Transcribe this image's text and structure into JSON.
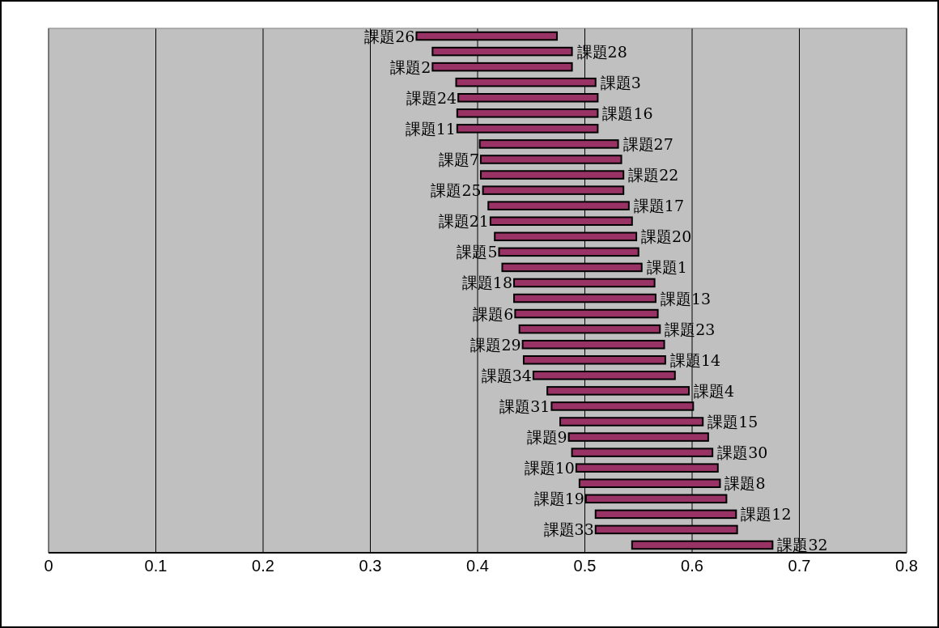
{
  "chart_data": {
    "type": "bar",
    "orientation": "horizontal",
    "categories": [
      "課題26",
      "課題28",
      "課題2",
      "課題3",
      "課題24",
      "課題16",
      "課題11",
      "課題27",
      "課題7",
      "課題22",
      "課題25",
      "課題17",
      "課題21",
      "課題20",
      "課題5",
      "課題1",
      "課題18",
      "課題13",
      "課題6",
      "課題23",
      "課題29",
      "課題14",
      "課題34",
      "課題4",
      "課題31",
      "課題15",
      "課題9",
      "課題30",
      "課題10",
      "課題8",
      "課題19",
      "課題12",
      "課題33",
      "課題32"
    ],
    "base": [
      0.343,
      0.358,
      0.358,
      0.38,
      0.382,
      0.381,
      0.381,
      0.402,
      0.403,
      0.403,
      0.405,
      0.41,
      0.412,
      0.416,
      0.42,
      0.423,
      0.434,
      0.434,
      0.435,
      0.439,
      0.442,
      0.443,
      0.452,
      0.465,
      0.469,
      0.477,
      0.485,
      0.488,
      0.492,
      0.495,
      0.501,
      0.51,
      0.51,
      0.544
    ],
    "values": [
      0.131,
      0.13,
      0.13,
      0.13,
      0.13,
      0.131,
      0.131,
      0.129,
      0.131,
      0.133,
      0.131,
      0.131,
      0.132,
      0.132,
      0.13,
      0.13,
      0.131,
      0.132,
      0.133,
      0.131,
      0.132,
      0.132,
      0.132,
      0.132,
      0.132,
      0.133,
      0.13,
      0.131,
      0.132,
      0.131,
      0.131,
      0.131,
      0.132,
      0.131
    ],
    "color": "#993366",
    "xlim": [
      0,
      0.8
    ],
    "xticks": [
      0,
      0.1,
      0.2,
      0.3,
      0.4,
      0.5,
      0.6,
      0.7,
      0.8
    ],
    "grid": "x"
  }
}
